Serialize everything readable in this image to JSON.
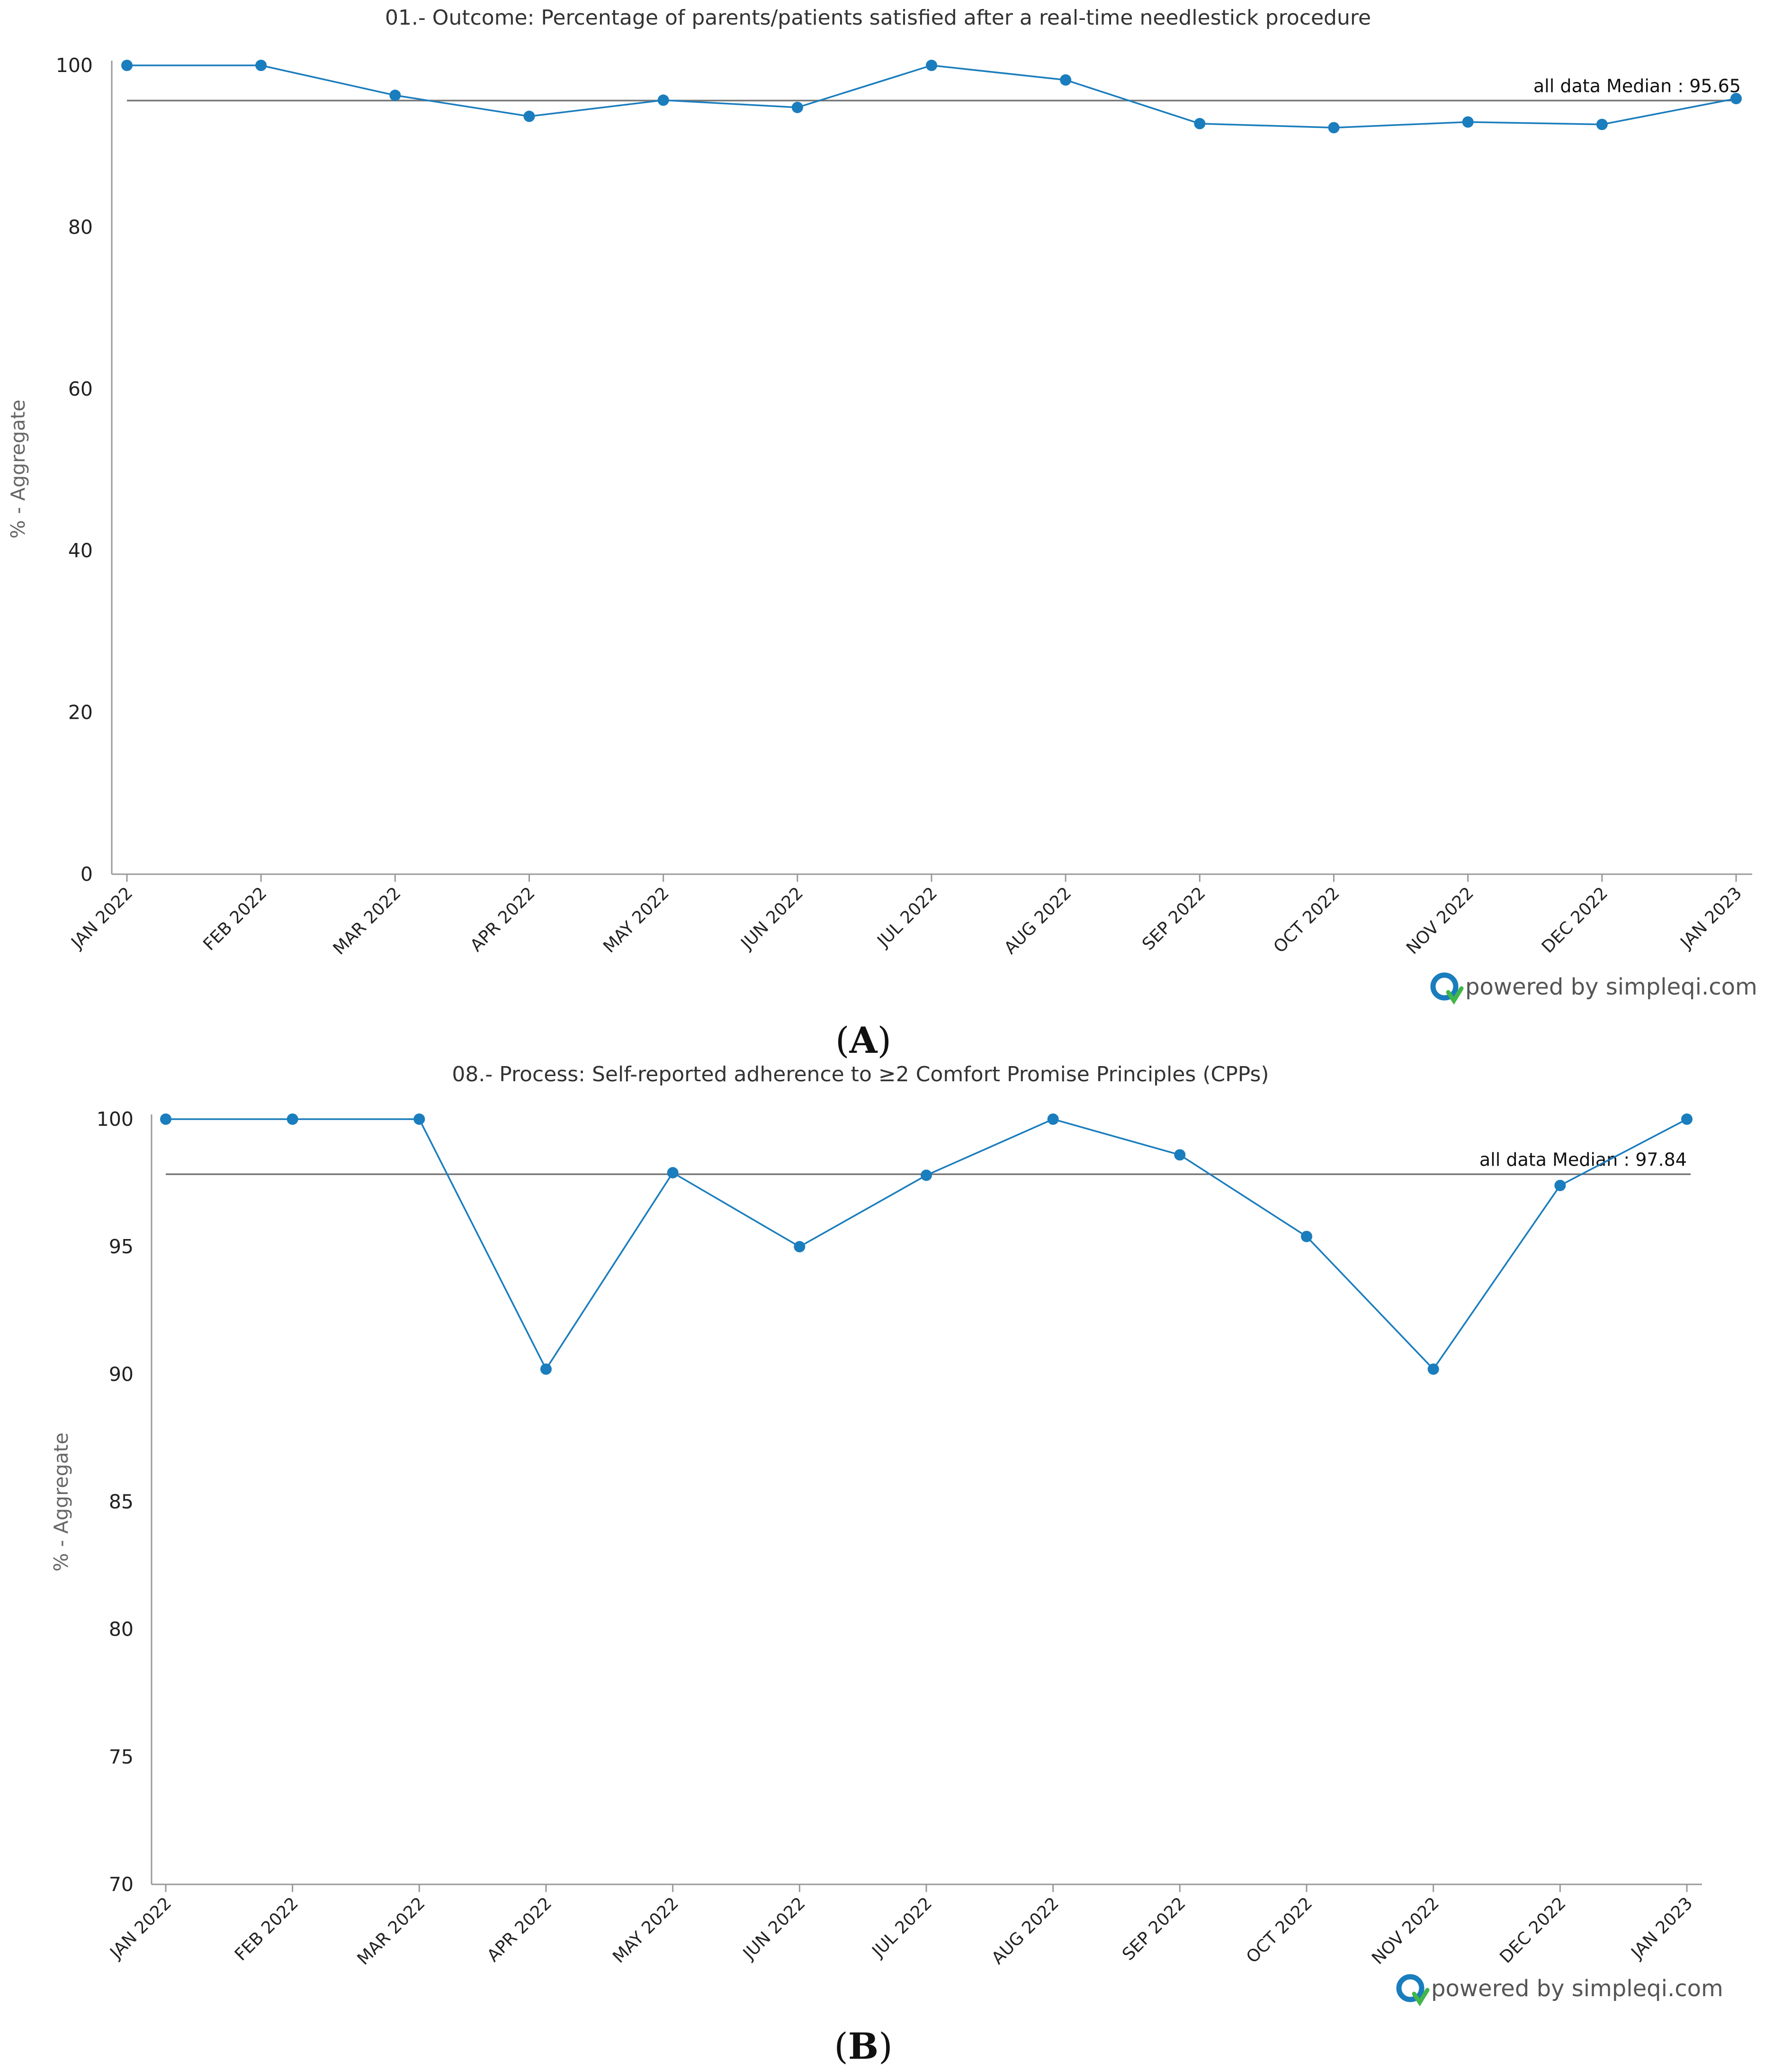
{
  "panels": [
    {
      "id": "A",
      "label": "A",
      "brand": "powered by simpleqi.com",
      "chart": {
        "type": "line",
        "title": "01.- Outcome: Percentage of parents/patients satisfied after a real-time needlestick procedure",
        "ylabel": "% - Aggregate",
        "xlabel": "",
        "ylim": [
          0,
          100
        ],
        "yticks": [
          0,
          20,
          40,
          60,
          80,
          100
        ],
        "categories": [
          "JAN 2022",
          "FEB 2022",
          "MAR 2022",
          "APR 2022",
          "MAY 2022",
          "JUN 2022",
          "JUL 2022",
          "AUG 2022",
          "SEP 2022",
          "OCT 2022",
          "NOV 2022",
          "DEC 2022",
          "JAN 2023"
        ],
        "values": [
          100,
          100,
          96.3,
          93.7,
          95.7,
          94.8,
          100,
          98.2,
          92.8,
          92.3,
          93.0,
          92.7,
          95.9
        ],
        "median": 95.65,
        "median_label": "all data Median : 95.65",
        "colors": {
          "series": "#1a7dbd",
          "median": "#777777",
          "axis": "#999999"
        }
      }
    },
    {
      "id": "B",
      "label": "B",
      "brand": "powered by simpleqi.com",
      "chart": {
        "type": "line",
        "title": "08.- Process: Self-reported adherence to ≥2 Comfort Promise Principles (CPPs)",
        "ylabel": "% - Aggregate",
        "xlabel": "",
        "ylim": [
          70,
          100
        ],
        "yticks": [
          70,
          75,
          80,
          85,
          90,
          95,
          100
        ],
        "categories": [
          "JAN 2022",
          "FEB 2022",
          "MAR 2022",
          "APR 2022",
          "MAY 2022",
          "JUN 2022",
          "JUL 2022",
          "AUG 2022",
          "SEP 2022",
          "OCT 2022",
          "NOV 2022",
          "DEC 2022",
          "JAN 2023"
        ],
        "values": [
          100,
          100,
          100,
          90.2,
          97.9,
          95.0,
          97.8,
          100,
          98.6,
          95.4,
          90.2,
          97.4,
          100
        ],
        "median": 97.84,
        "median_label": "all data Median : 97.84",
        "colors": {
          "series": "#1a7dbd",
          "median": "#777777",
          "axis": "#999999"
        }
      }
    }
  ]
}
